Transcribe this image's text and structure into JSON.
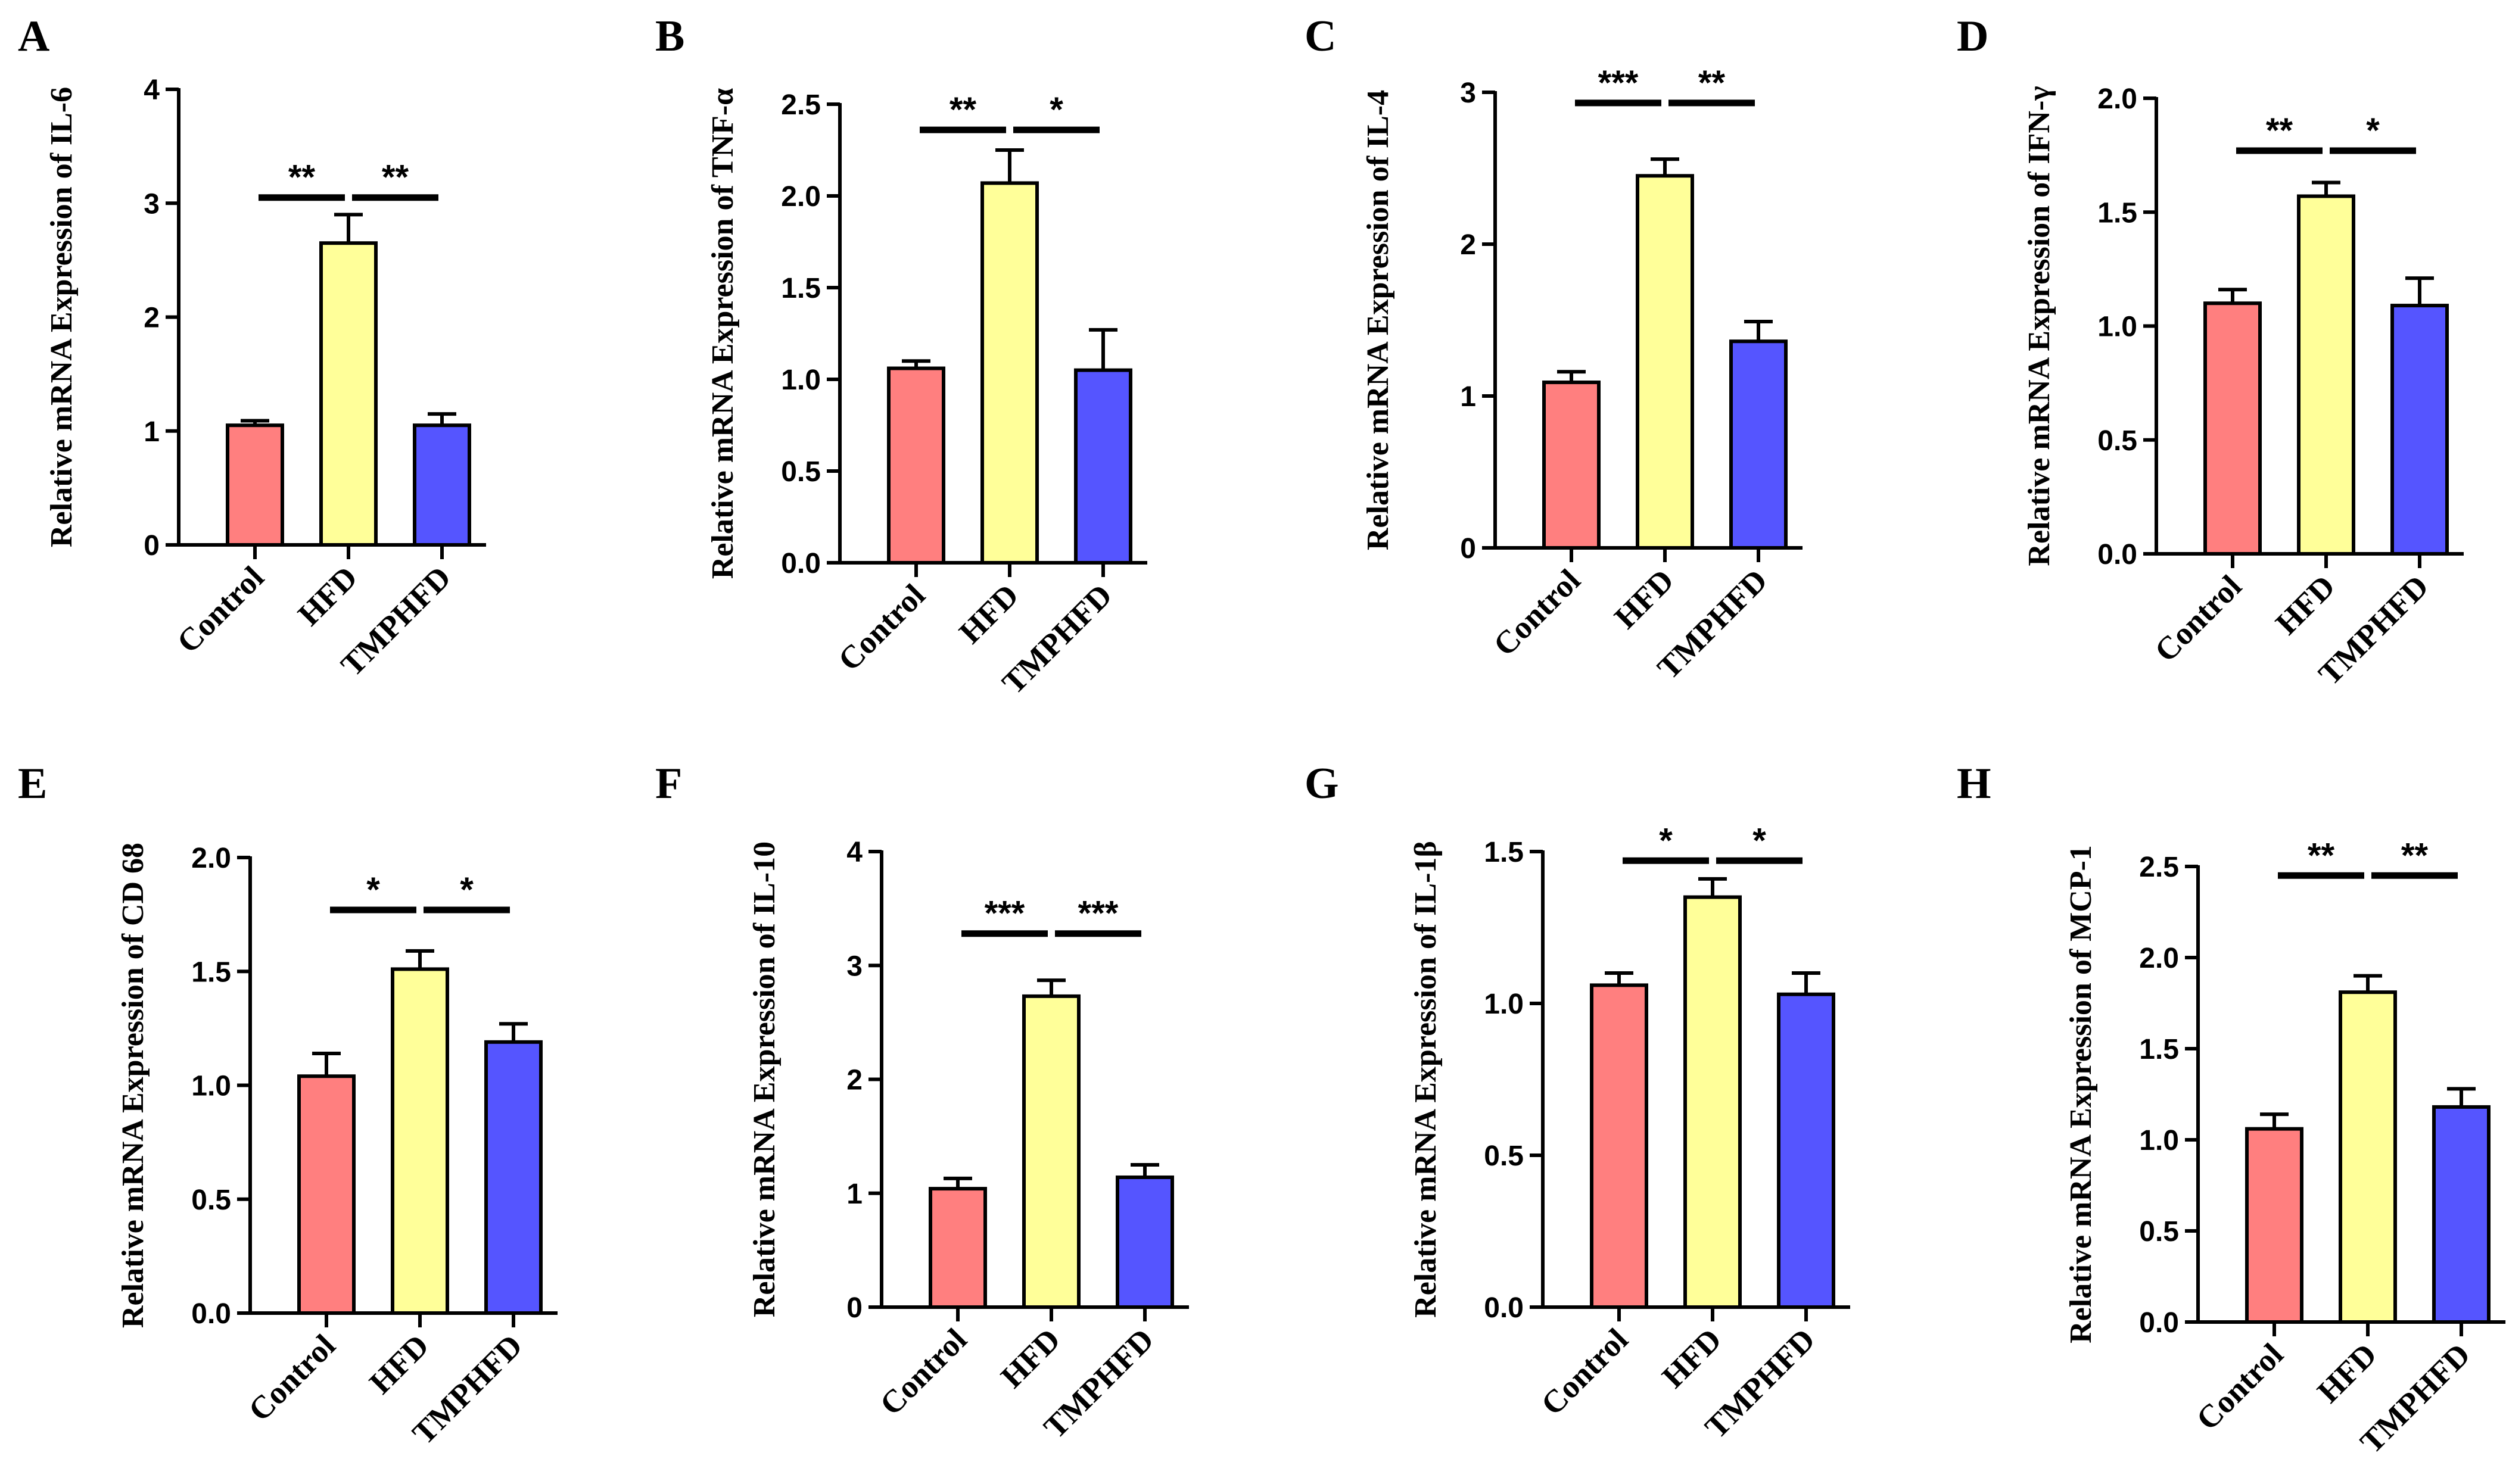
{
  "figure": {
    "categories": [
      "Control",
      "HFD",
      "TMPHFD"
    ],
    "colors": {
      "Control": "#FF7F7F",
      "HFD": "#FFFF99",
      "TMPHFD": "#5555FF",
      "axis": "#000000"
    }
  },
  "chart_data": [
    {
      "panel": "A",
      "type": "bar",
      "ylabel": "Relative mRNA Expression of IL-6",
      "categories": [
        "Control",
        "HFD",
        "TMPHFD"
      ],
      "values": [
        1.05,
        2.65,
        1.05
      ],
      "errors": [
        0.04,
        0.25,
        0.1
      ],
      "ylim": [
        0,
        4
      ],
      "yticks": [
        "0",
        "1",
        "2",
        "3",
        "4"
      ],
      "significance": [
        {
          "from": "Control",
          "to": "HFD",
          "label": "**",
          "y": 3.05
        },
        {
          "from": "HFD",
          "to": "TMPHFD",
          "label": "**",
          "y": 3.05
        }
      ]
    },
    {
      "panel": "B",
      "type": "bar",
      "ylabel": "Relative mRNA Expression of TNF-α",
      "categories": [
        "Control",
        "HFD",
        "TMPHFD"
      ],
      "values": [
        1.06,
        2.07,
        1.05
      ],
      "errors": [
        0.04,
        0.18,
        0.22
      ],
      "ylim": [
        0,
        2.5
      ],
      "yticks": [
        "0.0",
        "0.5",
        "1.0",
        "1.5",
        "2.0",
        "2.5"
      ],
      "significance": [
        {
          "from": "Control",
          "to": "HFD",
          "label": "**",
          "y": 2.36
        },
        {
          "from": "HFD",
          "to": "TMPHFD",
          "label": "*",
          "y": 2.36
        }
      ]
    },
    {
      "panel": "C",
      "type": "bar",
      "ylabel": "Relative mRNA Expression of IL-4",
      "categories": [
        "Control",
        "HFD",
        "TMPHFD"
      ],
      "values": [
        1.09,
        2.45,
        1.36
      ],
      "errors": [
        0.07,
        0.11,
        0.13
      ],
      "ylim": [
        0,
        3
      ],
      "yticks": [
        "0",
        "1",
        "2",
        "3"
      ],
      "significance": [
        {
          "from": "Control",
          "to": "HFD",
          "label": "***",
          "y": 2.93
        },
        {
          "from": "HFD",
          "to": "TMPHFD",
          "label": "**",
          "y": 2.93
        }
      ]
    },
    {
      "panel": "D",
      "type": "bar",
      "ylabel": "Relative mRNA Expression of IFN-γ",
      "categories": [
        "Control",
        "HFD",
        "TMPHFD"
      ],
      "values": [
        1.1,
        1.57,
        1.09
      ],
      "errors": [
        0.06,
        0.06,
        0.12
      ],
      "ylim": [
        0,
        2.0
      ],
      "yticks": [
        "0.0",
        "0.5",
        "1.0",
        "1.5",
        "2.0"
      ],
      "significance": [
        {
          "from": "Control",
          "to": "HFD",
          "label": "**",
          "y": 1.77
        },
        {
          "from": "HFD",
          "to": "TMPHFD",
          "label": "*",
          "y": 1.77
        }
      ]
    },
    {
      "panel": "E",
      "type": "bar",
      "ylabel": "Relative mRNA Expression of CD 68",
      "categories": [
        "Control",
        "HFD",
        "TMPHFD"
      ],
      "values": [
        1.04,
        1.51,
        1.19
      ],
      "errors": [
        0.1,
        0.08,
        0.08
      ],
      "ylim": [
        0,
        2.0
      ],
      "yticks": [
        "0.0",
        "0.5",
        "1.0",
        "1.5",
        "2.0"
      ],
      "significance": [
        {
          "from": "Control",
          "to": "HFD",
          "label": "*",
          "y": 1.77
        },
        {
          "from": "HFD",
          "to": "TMPHFD",
          "label": "*",
          "y": 1.77
        }
      ]
    },
    {
      "panel": "F",
      "type": "bar",
      "ylabel": "Relative mRNA Expression of IL-10",
      "categories": [
        "Control",
        "HFD",
        "TMPHFD"
      ],
      "values": [
        1.04,
        2.73,
        1.14
      ],
      "errors": [
        0.09,
        0.14,
        0.11
      ],
      "ylim": [
        0,
        4
      ],
      "yticks": [
        "0",
        "1",
        "2",
        "3",
        "4"
      ],
      "significance": [
        {
          "from": "Control",
          "to": "HFD",
          "label": "***",
          "y": 3.28
        },
        {
          "from": "HFD",
          "to": "TMPHFD",
          "label": "***",
          "y": 3.28
        }
      ]
    },
    {
      "panel": "G",
      "type": "bar",
      "ylabel": "Relative mRNA Expression of IL-1β",
      "categories": [
        "Control",
        "HFD",
        "TMPHFD"
      ],
      "values": [
        1.06,
        1.35,
        1.03
      ],
      "errors": [
        0.04,
        0.06,
        0.07
      ],
      "ylim": [
        0,
        1.5
      ],
      "yticks": [
        "0.0",
        "0.5",
        "1.0",
        "1.5"
      ],
      "significance": [
        {
          "from": "Control",
          "to": "HFD",
          "label": "*",
          "y": 1.47
        },
        {
          "from": "HFD",
          "to": "TMPHFD",
          "label": "*",
          "y": 1.47
        }
      ]
    },
    {
      "panel": "H",
      "type": "bar",
      "ylabel": "Relative mRNA Expression of MCP-1",
      "categories": [
        "Control",
        "HFD",
        "TMPHFD"
      ],
      "values": [
        1.06,
        1.81,
        1.18
      ],
      "errors": [
        0.08,
        0.09,
        0.1
      ],
      "ylim": [
        0,
        2.5
      ],
      "yticks": [
        "0.0",
        "0.5",
        "1.0",
        "1.5",
        "2.0",
        "2.5"
      ],
      "significance": [
        {
          "from": "Control",
          "to": "HFD",
          "label": "**",
          "y": 2.45
        },
        {
          "from": "HFD",
          "to": "TMPHFD",
          "label": "**",
          "y": 2.45
        }
      ]
    }
  ]
}
